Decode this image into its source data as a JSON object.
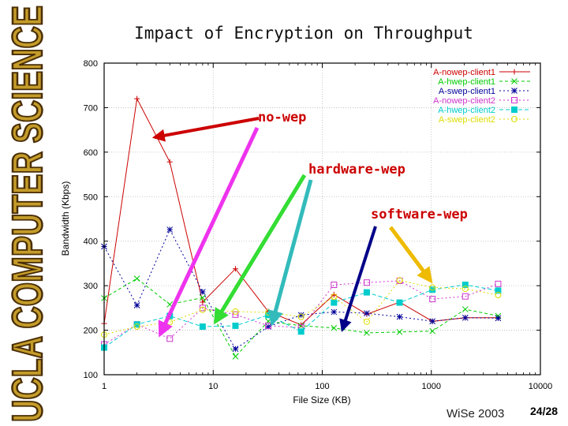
{
  "slide": {
    "title": "Impact of Encryption on Throughput",
    "logo_text": "UCLA COMPUTER SCIENCE",
    "footer": "WiSe 2003",
    "page": "24/28"
  },
  "colors": {
    "logo_fill": "#c49c2a",
    "logo_outline": "#4a2e06",
    "frame": "#000000",
    "grid": "#bbbbbb"
  },
  "chart_data": {
    "type": "line",
    "title": "",
    "xlabel": "File Size (KB)",
    "ylabel": "Bandwidth (Kbps)",
    "x_scale": "log",
    "xlim": [
      1,
      10000
    ],
    "ylim": [
      100,
      800
    ],
    "grid": true,
    "legend_position": "top-right",
    "x_ticks": [
      "1",
      "10",
      "100",
      "1000",
      "10000"
    ],
    "y_ticks": [
      "100",
      "200",
      "300",
      "400",
      "500",
      "600",
      "700",
      "800"
    ],
    "series": [
      {
        "name": "A-nowep-client1",
        "color": "#cc0000",
        "marker": "plus",
        "dash": "",
        "x": [
          1,
          2,
          4,
          8,
          16,
          32,
          64,
          128,
          256,
          512,
          1024,
          2048,
          4096
        ],
        "y": [
          215,
          720,
          578,
          263,
          338,
          242,
          212,
          280,
          236,
          263,
          220,
          228,
          228
        ]
      },
      {
        "name": "A-hwep-client1",
        "color": "#00cc00",
        "marker": "x",
        "dash": "4,3",
        "x": [
          1,
          2,
          4,
          8,
          16,
          32,
          64,
          128,
          256,
          512,
          1024,
          2048,
          4096
        ],
        "y": [
          272,
          316,
          258,
          273,
          141,
          220,
          210,
          205,
          194,
          196,
          198,
          247,
          232
        ]
      },
      {
        "name": "A-swep-client1",
        "color": "#000099",
        "marker": "star",
        "dash": "2,3",
        "x": [
          1,
          2,
          4,
          8,
          16,
          32,
          64,
          128,
          256,
          512,
          1024,
          2048,
          4096
        ],
        "y": [
          388,
          256,
          426,
          286,
          158,
          208,
          234,
          241,
          238,
          230,
          220,
          228,
          227
        ]
      },
      {
        "name": "A-nowep-client2",
        "color": "#cc33cc",
        "marker": "square",
        "dash": "2,3",
        "x": [
          1,
          2,
          4,
          8,
          16,
          32,
          64,
          128,
          256,
          512,
          1024,
          2048,
          4096
        ],
        "y": [
          168,
          213,
          181,
          250,
          235,
          210,
          206,
          302,
          307,
          311,
          270,
          276,
          304
        ]
      },
      {
        "name": "A-hwep-client2",
        "color": "#00cccc",
        "marker": "filled-square",
        "dash": "5,3",
        "x": [
          1,
          2,
          4,
          8,
          16,
          32,
          64,
          128,
          256,
          512,
          1024,
          2048,
          4096
        ],
        "y": [
          161,
          213,
          232,
          208,
          210,
          234,
          197,
          262,
          285,
          262,
          291,
          302,
          289
        ]
      },
      {
        "name": "A-swep-client2",
        "color": "#dddd00",
        "marker": "circle",
        "dash": "2,3",
        "x": [
          1,
          2,
          4,
          8,
          16,
          32,
          64,
          128,
          256,
          512,
          1024,
          2048,
          4096
        ],
        "y": [
          190,
          208,
          218,
          246,
          242,
          240,
          230,
          275,
          219,
          312,
          296,
          293,
          279
        ]
      }
    ],
    "annotations": [
      {
        "text": "no-wep",
        "color": "#cc0000"
      },
      {
        "text": "hardware-wep",
        "color": "#cc0000"
      },
      {
        "text": "software-wep",
        "color": "#cc0000"
      }
    ]
  }
}
